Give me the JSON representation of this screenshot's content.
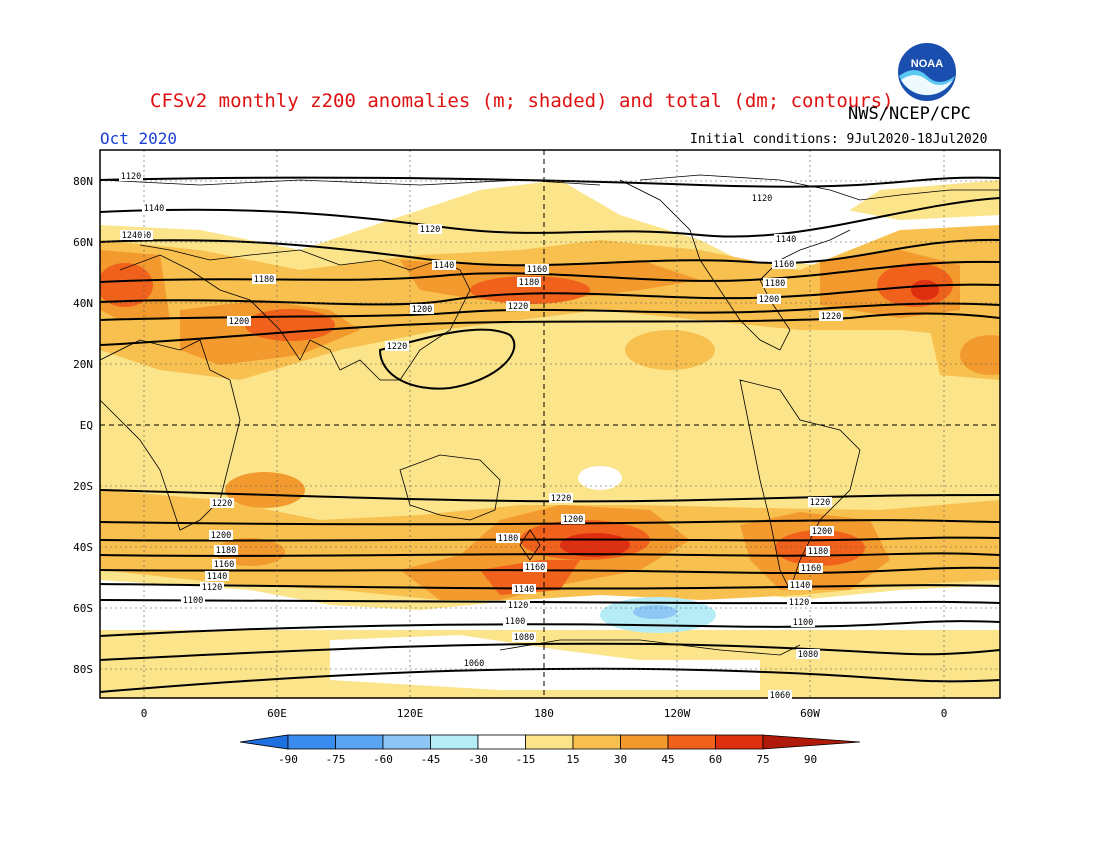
{
  "title": "CFSv2 monthly z200 anomalies (m; shaded) and total (dm; contours)",
  "agency": "NWS/NCEP/CPC",
  "month_label": "Oct 2020",
  "initial_conditions": "Initial conditions: 9Jul2020-18Jul2020",
  "logo_text": "NOAA",
  "lat_labels": [
    "80N",
    "60N",
    "40N",
    "20N",
    "EQ",
    "20S",
    "40S",
    "60S",
    "80S"
  ],
  "lon_labels": [
    "0",
    "60E",
    "120E",
    "180",
    "120W",
    "60W",
    "0"
  ],
  "colorbar": {
    "labels": [
      "-90",
      "-75",
      "-60",
      "-45",
      "-30",
      "-15",
      "15",
      "30",
      "45",
      "60",
      "75",
      "90"
    ],
    "colors": [
      "#1e6fe0",
      "#3a8bef",
      "#5aa4f2",
      "#8ec6f6",
      "#b6ecf6",
      "#ffffff",
      "#fbe48a",
      "#f8c04e",
      "#f39a2e",
      "#f0621c",
      "#de3010",
      "#b01a0a"
    ]
  },
  "contour_labels": [
    "1120",
    "1140",
    "1160",
    "1180",
    "1200",
    "1220",
    "1240",
    "1120",
    "1140",
    "1160",
    "1180",
    "1200",
    "1220",
    "1220",
    "1200",
    "1180",
    "1160",
    "1140",
    "1120",
    "1100",
    "1080",
    "1060",
    "1220",
    "1200",
    "1180",
    "1160",
    "1140",
    "1120",
    "1100",
    "1220",
    "1200",
    "1180",
    "1160",
    "1140",
    "1120",
    "1100",
    "1080",
    "1060",
    "1120",
    "1140",
    "1160",
    "1180",
    "1200",
    "1220"
  ],
  "colors": {
    "title": "#e01010",
    "month": "#1a3fd6",
    "land": "#000000"
  }
}
